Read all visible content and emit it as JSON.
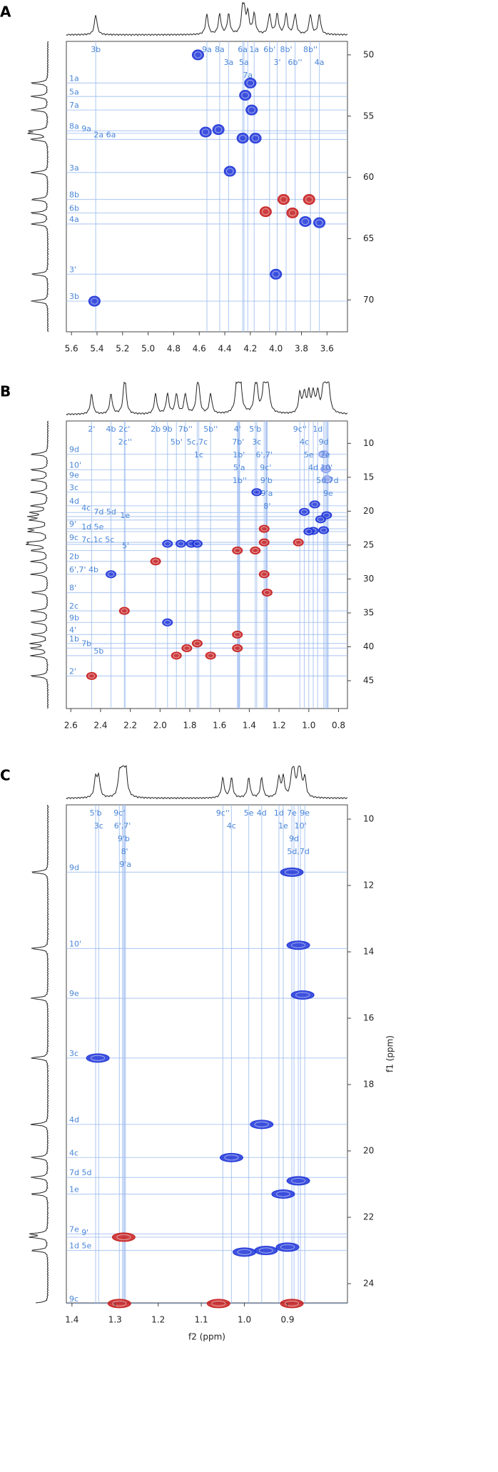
{
  "chart_data": [
    {
      "type": "hsqc",
      "panel_label": "A",
      "xlim": [
        5.64,
        3.44
      ],
      "ylim": [
        48.9,
        72.6
      ],
      "xticks": [
        5.6,
        5.4,
        5.2,
        {
          "value": 5,
          "label": "5.0"
        },
        4.8,
        4.6,
        4.4,
        4.2,
        {
          "value": 4,
          "label": "4.0"
        },
        3.8,
        3.6
      ],
      "yticks": [
        50,
        55,
        60,
        65,
        70
      ],
      "vlines": [
        {
          "label": "3b",
          "value": 5.41
        },
        {
          "label": "9a",
          "value": 4.54
        },
        {
          "label": "8a",
          "value": 4.44
        },
        {
          "label": "3a",
          "value": 4.37
        },
        {
          "label": "5a",
          "value": 4.25
        },
        {
          "label": "6a",
          "value": 4.26
        },
        {
          "label": "7a",
          "value": 4.22
        },
        {
          "label": "1a",
          "value": 4.17
        },
        {
          "label": "6b'",
          "value": 4.05
        },
        {
          "label": "3'",
          "value": 3.99
        },
        {
          "label": "8b'",
          "value": 3.92
        },
        {
          "label": "6b''",
          "value": 3.85
        },
        {
          "label": "8b''",
          "value": 3.73
        },
        {
          "label": "4a",
          "value": 3.66
        }
      ],
      "hlines": [
        {
          "label": "1a",
          "value": 52.3
        },
        {
          "label": "5a",
          "value": 53.4
        },
        {
          "label": "7a",
          "value": 54.5
        },
        {
          "label": "9a",
          "value": 56.4
        },
        {
          "label": "8a",
          "value": 56.2
        },
        {
          "label": "2a 6a",
          "value": 56.9
        },
        {
          "label": "3a",
          "value": 59.6
        },
        {
          "label": "8b",
          "value": 61.8
        },
        {
          "label": "6b",
          "value": 62.9
        },
        {
          "label": "4a",
          "value": 63.8
        },
        {
          "label": "3'",
          "value": 67.9
        },
        {
          "label": "3b",
          "value": 70.1
        }
      ],
      "series": [
        {
          "color": "#1f35d8",
          "x": [
            4.61,
            4.2,
            4.24,
            4.19,
            4.55,
            4.45,
            4.26,
            4.16,
            4.36,
            3.66,
            3.77,
            4.0,
            5.42
          ],
          "values": [
            50.0,
            52.3,
            53.3,
            54.5,
            56.3,
            56.1,
            56.8,
            56.8,
            59.5,
            63.7,
            63.6,
            67.9,
            70.1
          ]
        },
        {
          "color": "#c81e1e",
          "x": [
            4.08,
            3.94,
            3.87,
            3.74
          ],
          "values": [
            62.8,
            61.8,
            62.9,
            61.8
          ]
        }
      ]
    },
    {
      "type": "hsqc",
      "panel_label": "B",
      "xlim": [
        2.63,
        0.74
      ],
      "ylim": [
        6.7,
        49.1
      ],
      "xticks": [
        2.6,
        2.4,
        2.2,
        {
          "value": 2,
          "label": "2.0"
        },
        1.8,
        1.6,
        1.4,
        1.2,
        {
          "value": 1,
          "label": "1.0"
        },
        0.8
      ],
      "yticks": [
        10,
        15,
        20,
        25,
        30,
        35,
        40,
        45
      ],
      "vlines": [
        {
          "label": "2'",
          "value": 2.46
        },
        {
          "label": "4b",
          "value": 2.33
        },
        {
          "label": "2c'",
          "value": 2.24
        },
        {
          "label": "2c''",
          "value": 2.235
        },
        {
          "label": "2b",
          "value": 2.03
        },
        {
          "label": "9b",
          "value": 1.95
        },
        {
          "label": "5b'",
          "value": 1.89
        },
        {
          "label": "7b''",
          "value": 1.83
        },
        {
          "label": "5c,7c",
          "value": 1.75
        },
        {
          "label": "1c",
          "value": 1.74
        },
        {
          "label": "5b''",
          "value": 1.66
        },
        {
          "label": "4'",
          "value": 1.48
        },
        {
          "label": "7b'",
          "value": 1.475
        },
        {
          "label": "1b'",
          "value": 1.47
        },
        {
          "label": "5'a",
          "value": 1.468
        },
        {
          "label": "1b''",
          "value": 1.465
        },
        {
          "label": "5'b",
          "value": 1.36
        },
        {
          "label": "3c",
          "value": 1.35
        },
        {
          "label": "8'",
          "value": 1.28
        },
        {
          "label": "9c'",
          "value": 1.29
        },
        {
          "label": "6',7'",
          "value": 1.3
        },
        {
          "label": "9'b",
          "value": 1.285
        },
        {
          "label": "9'a",
          "value": 1.282
        },
        {
          "label": "9c''",
          "value": 1.06
        },
        {
          "label": "4c",
          "value": 1.03
        },
        {
          "label": "4d",
          "value": 0.97
        },
        {
          "label": "5e",
          "value": 1.0
        },
        {
          "label": "1d",
          "value": 0.94
        },
        {
          "label": "9e",
          "value": 0.87
        },
        {
          "label": "7e",
          "value": 0.89
        },
        {
          "label": "9d",
          "value": 0.9
        },
        {
          "label": "5d,7d",
          "value": 0.875
        },
        {
          "label": "10'",
          "value": 0.88
        }
      ],
      "hlines": [
        {
          "label": "9d",
          "value": 11.6
        },
        {
          "label": "10'",
          "value": 13.9
        },
        {
          "label": "9e",
          "value": 15.4
        },
        {
          "label": "3c",
          "value": 17.2
        },
        {
          "label": "4d",
          "value": 19.2
        },
        {
          "label": "4c",
          "value": 20.2
        },
        {
          "label": "7d 5d",
          "value": 20.8
        },
        {
          "label": "1e",
          "value": 21.3
        },
        {
          "label": "9'",
          "value": 22.6
        },
        {
          "label": "1d 5e",
          "value": 23.0
        },
        {
          "label": "9c",
          "value": 24.6
        },
        {
          "label": "7c,1c 5c",
          "value": 24.9
        },
        {
          "label": "5'",
          "value": 25.8
        },
        {
          "label": "2b",
          "value": 27.4
        },
        {
          "label": "6',7' 4b",
          "value": 29.3
        },
        {
          "label": "8'",
          "value": 32.0
        },
        {
          "label": "2c",
          "value": 34.7
        },
        {
          "label": "9b",
          "value": 36.4
        },
        {
          "label": "4'",
          "value": 38.2
        },
        {
          "label": "1b",
          "value": 39.5
        },
        {
          "label": "7b",
          "value": 40.2
        },
        {
          "label": "5b",
          "value": 41.3
        },
        {
          "label": "2'",
          "value": 44.3
        }
      ],
      "series": [
        {
          "color": "#1f35d8",
          "x": [
            1.35,
            0.96,
            1.03,
            0.88,
            0.92,
            0.97,
            0.9,
            1.0,
            1.95,
            1.86,
            1.79,
            1.75,
            2.33,
            1.95
          ],
          "values": [
            17.2,
            19.0,
            20.1,
            20.6,
            21.2,
            22.9,
            22.8,
            23.0,
            24.8,
            24.8,
            24.8,
            24.8,
            29.3,
            36.4
          ]
        },
        {
          "color": "#8da0ec",
          "x": [
            0.9,
            0.885,
            0.875
          ],
          "values": [
            11.6,
            13.8,
            15.3
          ]
        },
        {
          "color": "#c81e1e",
          "x": [
            1.3,
            1.3,
            1.07,
            2.03,
            1.48,
            1.36,
            1.3,
            1.28,
            2.24,
            1.48,
            1.48,
            1.75,
            1.82,
            1.89,
            1.66,
            2.46
          ],
          "values": [
            22.6,
            24.6,
            24.6,
            27.4,
            25.8,
            25.8,
            29.3,
            32.0,
            34.7,
            38.2,
            40.2,
            39.5,
            40.2,
            41.3,
            41.3,
            44.3
          ]
        }
      ]
    },
    {
      "type": "hsqc",
      "panel_label": "C",
      "xlabel": "f2 (ppm)",
      "ylabel": "f1 (ppm)",
      "xlim": [
        1.413,
        0.761
      ],
      "ylim": [
        9.57,
        24.58
      ],
      "xticks": [
        1.4,
        1.3,
        1.2,
        1.1,
        {
          "value": 1,
          "label": "1.0"
        },
        0.9
      ],
      "yticks": [
        10,
        12,
        14,
        16,
        18,
        20,
        22,
        24
      ],
      "vlines": [
        {
          "label": "5'b",
          "value": 1.345
        },
        {
          "label": "3c",
          "value": 1.338
        },
        {
          "label": "9c'",
          "value": 1.29
        },
        {
          "label": "6',7'",
          "value": 1.283
        },
        {
          "label": "9'b",
          "value": 1.28
        },
        {
          "label": "8'",
          "value": 1.278
        },
        {
          "label": "9'a",
          "value": 1.276
        },
        {
          "label": "9c''",
          "value": 1.05
        },
        {
          "label": "4c",
          "value": 1.03
        },
        {
          "label": "5e",
          "value": 0.99
        },
        {
          "label": "4d",
          "value": 0.96
        },
        {
          "label": "1d",
          "value": 0.92
        },
        {
          "label": "1e",
          "value": 0.91
        },
        {
          "label": "7e",
          "value": 0.89
        },
        {
          "label": "9d",
          "value": 0.885
        },
        {
          "label": "9e",
          "value": 0.86
        },
        {
          "label": "5d,7d",
          "value": 0.875
        },
        {
          "label": "10'",
          "value": 0.87
        }
      ],
      "hlines": [
        {
          "label": "9d",
          "value": 11.6
        },
        {
          "label": "10'",
          "value": 13.9
        },
        {
          "label": "9e",
          "value": 15.4
        },
        {
          "label": "3c",
          "value": 17.2
        },
        {
          "label": "4d",
          "value": 19.2
        },
        {
          "label": "4c",
          "value": 20.2
        },
        {
          "label": "7d 5d",
          "value": 20.8
        },
        {
          "label": "1e",
          "value": 21.3
        },
        {
          "label": "7e",
          "value": 22.5
        },
        {
          "label": "9'",
          "value": 22.6
        },
        {
          "label": "1d 5e",
          "value": 23.0
        },
        {
          "label": "9c",
          "value": 24.6
        }
      ],
      "series": [
        {
          "color": "#1f35d8",
          "x": [
            0.89,
            0.875,
            0.865,
            1.34,
            0.96,
            1.03,
            0.875,
            0.91,
            0.95,
            0.9,
            1.0
          ],
          "values": [
            11.6,
            13.8,
            15.3,
            17.2,
            19.2,
            20.2,
            20.9,
            21.3,
            23.0,
            22.9,
            23.05
          ]
        },
        {
          "color": "#c81e1e",
          "x": [
            1.28,
            1.29,
            1.06,
            0.89
          ],
          "values": [
            22.6,
            24.6,
            24.6,
            24.6
          ]
        }
      ]
    }
  ]
}
